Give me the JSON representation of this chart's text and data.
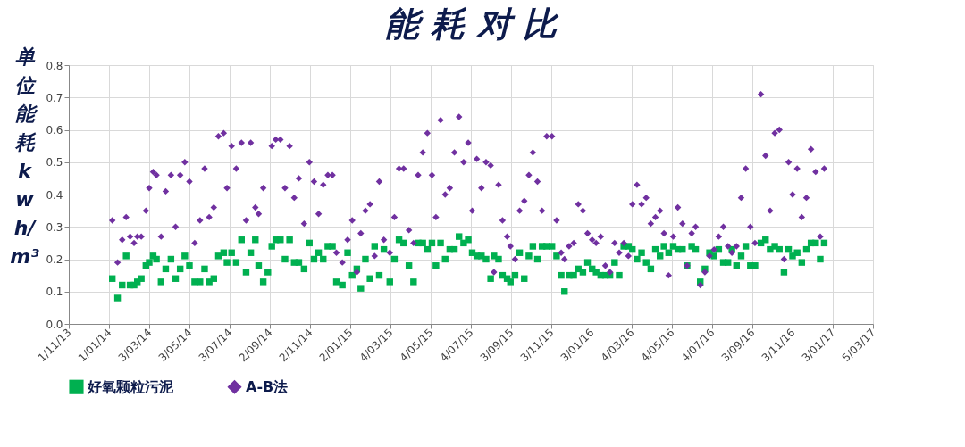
{
  "chart_data": {
    "type": "scatter",
    "title": "能 耗 对 比",
    "ylabel": "单位能耗kwh/m³",
    "x": [
      "2014-01-06",
      "2014-01-14",
      "2014-01-21",
      "2014-01-27",
      "2014-02-02",
      "2014-02-08",
      "2014-02-13",
      "2014-02-19",
      "2014-02-26",
      "2014-03-03",
      "2014-03-09",
      "2014-03-14",
      "2014-03-21",
      "2014-03-28",
      "2014-04-05",
      "2014-04-12",
      "2014-04-19",
      "2014-04-26",
      "2014-05-03",
      "2014-05-11",
      "2014-05-19",
      "2014-05-26",
      "2014-06-02",
      "2014-06-09",
      "2014-06-16",
      "2014-06-24",
      "2014-06-29",
      "2014-07-06",
      "2014-07-13",
      "2014-07-21",
      "2014-07-28",
      "2014-08-04",
      "2014-08-11",
      "2014-08-16",
      "2014-08-23",
      "2014-08-30",
      "2014-09-05",
      "2014-09-11",
      "2014-09-18",
      "2014-09-25",
      "2014-10-02",
      "2014-10-09",
      "2014-10-16",
      "2014-10-24",
      "2014-11-01",
      "2014-11-08",
      "2014-11-15",
      "2014-11-22",
      "2014-11-29",
      "2014-12-06",
      "2014-12-12",
      "2014-12-21",
      "2014-12-29",
      "2015-01-05",
      "2015-01-12",
      "2015-01-18",
      "2015-01-25",
      "2015-02-01",
      "2015-02-08",
      "2015-02-15",
      "2015-02-22",
      "2015-03-03",
      "2015-03-10",
      "2015-03-17",
      "2015-03-24",
      "2015-04-01",
      "2015-04-08",
      "2015-04-15",
      "2015-04-22",
      "2015-04-29",
      "2015-05-06",
      "2015-05-12",
      "2015-05-19",
      "2015-05-26",
      "2015-06-02",
      "2015-06-09",
      "2015-06-16",
      "2015-06-23",
      "2015-06-30",
      "2015-07-06",
      "2015-07-13",
      "2015-07-20",
      "2015-07-27",
      "2015-08-03",
      "2015-08-08",
      "2015-08-15",
      "2015-08-21",
      "2015-08-28",
      "2015-09-02",
      "2015-09-09",
      "2015-09-16",
      "2015-09-23",
      "2015-09-30",
      "2015-10-06",
      "2015-10-13",
      "2015-10-20",
      "2015-10-27",
      "2015-11-04",
      "2015-11-11",
      "2015-11-18",
      "2015-11-23",
      "2015-11-30",
      "2015-12-07",
      "2015-12-14",
      "2015-12-21",
      "2015-12-28",
      "2016-01-04",
      "2016-01-10",
      "2016-01-17",
      "2016-01-24",
      "2016-01-31",
      "2016-02-07",
      "2016-02-14",
      "2016-02-21",
      "2016-02-28",
      "2016-03-05",
      "2016-03-12",
      "2016-03-19",
      "2016-03-26",
      "2016-04-02",
      "2016-04-09",
      "2016-04-16",
      "2016-04-22",
      "2016-04-29",
      "2016-05-06",
      "2016-05-13",
      "2016-05-20",
      "2016-05-27",
      "2016-06-03",
      "2016-06-09",
      "2016-06-16",
      "2016-06-23",
      "2016-06-30",
      "2016-07-07",
      "2016-07-14",
      "2016-07-21",
      "2016-07-28",
      "2016-08-03",
      "2016-08-10",
      "2016-08-17",
      "2016-08-24",
      "2016-08-31",
      "2016-09-07",
      "2016-09-16",
      "2016-09-23",
      "2016-09-30",
      "2016-10-07",
      "2016-10-14",
      "2016-10-21",
      "2016-10-28",
      "2016-11-03",
      "2016-11-10",
      "2016-11-17",
      "2016-11-24",
      "2016-12-01",
      "2016-12-08",
      "2016-12-15",
      "2016-12-21"
    ],
    "series": [
      {
        "name": "好氧颗粒污泥",
        "color": "#00b050",
        "marker": "square",
        "values": [
          0.14,
          0.08,
          0.12,
          0.21,
          0.12,
          0.12,
          0.13,
          0.14,
          0.18,
          0.19,
          0.21,
          0.2,
          0.13,
          0.17,
          0.2,
          0.14,
          0.17,
          0.21,
          0.18,
          0.13,
          0.13,
          0.17,
          0.13,
          0.14,
          0.21,
          0.22,
          0.19,
          0.22,
          0.19,
          0.26,
          0.16,
          0.22,
          0.26,
          0.18,
          0.13,
          0.16,
          0.24,
          0.26,
          0.26,
          0.2,
          0.26,
          0.19,
          0.19,
          0.17,
          0.25,
          0.2,
          0.22,
          0.2,
          0.24,
          0.24,
          0.13,
          0.12,
          0.22,
          0.15,
          0.17,
          0.11,
          0.2,
          0.14,
          0.24,
          0.15,
          0.23,
          0.13,
          0.2,
          0.26,
          0.25,
          0.18,
          0.13,
          0.25,
          0.25,
          0.23,
          0.25,
          0.18,
          0.25,
          0.2,
          0.23,
          0.23,
          0.27,
          0.25,
          0.26,
          0.22,
          0.21,
          0.21,
          0.2,
          0.14,
          0.21,
          0.2,
          0.15,
          0.14,
          0.13,
          0.15,
          0.22,
          0.14,
          0.21,
          0.24,
          0.2,
          0.24,
          0.24,
          0.24,
          0.21,
          0.15,
          0.1,
          0.15,
          0.15,
          0.17,
          0.16,
          0.19,
          0.17,
          0.16,
          0.15,
          0.15,
          0.15,
          0.19,
          0.15,
          0.24,
          0.24,
          0.23,
          0.2,
          0.22,
          0.19,
          0.17,
          0.23,
          0.21,
          0.24,
          0.22,
          0.24,
          0.23,
          0.23,
          0.18,
          0.24,
          0.23,
          0.13,
          0.17,
          0.22,
          0.21,
          0.23,
          0.19,
          0.19,
          0.23,
          0.18,
          0.21,
          0.24,
          0.18,
          0.18,
          0.25,
          0.26,
          0.23,
          0.24,
          0.23,
          0.16,
          0.23,
          0.21,
          0.22,
          0.19,
          0.23,
          0.25,
          0.25,
          0.2,
          0.25
        ]
      },
      {
        "name": "A-B法",
        "color": "#7030a0",
        "marker": "diamond",
        "values": [
          0.32,
          0.19,
          0.26,
          0.33,
          0.27,
          0.25,
          0.27,
          0.27,
          0.35,
          0.42,
          0.47,
          0.46,
          0.27,
          0.41,
          0.46,
          0.3,
          0.46,
          0.5,
          0.44,
          0.25,
          0.32,
          0.48,
          0.33,
          0.36,
          0.58,
          0.59,
          0.42,
          0.55,
          0.48,
          0.56,
          0.32,
          0.56,
          0.36,
          0.34,
          0.42,
          null,
          0.55,
          0.57,
          0.57,
          0.42,
          0.55,
          0.39,
          0.45,
          0.31,
          0.5,
          0.44,
          0.34,
          0.43,
          0.46,
          0.46,
          0.22,
          0.19,
          0.26,
          0.32,
          0.16,
          0.28,
          0.35,
          0.37,
          0.21,
          0.44,
          0.26,
          0.22,
          0.33,
          0.48,
          0.48,
          0.29,
          0.25,
          0.46,
          0.53,
          0.59,
          0.46,
          0.33,
          0.63,
          0.4,
          0.42,
          0.53,
          0.64,
          0.5,
          0.56,
          0.35,
          0.51,
          0.42,
          0.5,
          0.49,
          0.16,
          0.43,
          0.32,
          0.27,
          0.24,
          0.2,
          0.35,
          0.38,
          0.46,
          0.53,
          0.44,
          0.35,
          0.58,
          0.58,
          0.32,
          0.22,
          0.2,
          0.24,
          0.25,
          0.37,
          0.35,
          0.28,
          0.26,
          0.25,
          0.27,
          0.18,
          0.16,
          0.25,
          0.22,
          0.25,
          0.21,
          0.37,
          0.43,
          0.37,
          0.39,
          0.31,
          0.33,
          0.35,
          0.28,
          0.15,
          0.27,
          0.36,
          0.31,
          0.18,
          0.28,
          0.3,
          0.12,
          0.16,
          0.21,
          0.23,
          0.27,
          0.3,
          0.24,
          0.22,
          0.24,
          0.39,
          0.48,
          0.3,
          0.25,
          0.71,
          0.52,
          0.35,
          0.59,
          0.6,
          0.2,
          0.5,
          0.4,
          0.48,
          0.33,
          0.39,
          0.54,
          0.47,
          0.27,
          0.48
        ]
      }
    ],
    "xlim": [
      "2013-11-01",
      "2017-03-05"
    ],
    "xticks": [
      {
        "value": "2013-11-01",
        "label": "1/11/13"
      },
      {
        "value": "2014-01-01",
        "label": "1/01/14"
      },
      {
        "value": "2014-03-03",
        "label": "3/03/14"
      },
      {
        "value": "2014-05-03",
        "label": "3/05/14"
      },
      {
        "value": "2014-07-03",
        "label": "3/07/14"
      },
      {
        "value": "2014-09-02",
        "label": "2/09/14"
      },
      {
        "value": "2014-11-02",
        "label": "2/11/14"
      },
      {
        "value": "2015-01-02",
        "label": "2/01/15"
      },
      {
        "value": "2015-03-04",
        "label": "4/03/15"
      },
      {
        "value": "2015-05-04",
        "label": "4/05/15"
      },
      {
        "value": "2015-07-04",
        "label": "4/07/15"
      },
      {
        "value": "2015-09-03",
        "label": "3/09/15"
      },
      {
        "value": "2015-11-03",
        "label": "3/11/15"
      },
      {
        "value": "2016-01-03",
        "label": "3/01/16"
      },
      {
        "value": "2016-03-04",
        "label": "4/03/16"
      },
      {
        "value": "2016-05-04",
        "label": "4/05/16"
      },
      {
        "value": "2016-07-04",
        "label": "4/07/16"
      },
      {
        "value": "2016-09-03",
        "label": "3/09/16"
      },
      {
        "value": "2016-11-03",
        "label": "3/11/16"
      },
      {
        "value": "2017-01-03",
        "label": "3/01/17"
      },
      {
        "value": "2017-03-05",
        "label": "5/03/17"
      }
    ],
    "ylim": [
      0,
      0.8
    ],
    "yticks": [
      {
        "value": 0,
        "label": "0.0"
      },
      0.1,
      0.2,
      0.3,
      0.4,
      0.5,
      0.6,
      0.7,
      0.8
    ],
    "grid": true,
    "legend": "bottom"
  }
}
